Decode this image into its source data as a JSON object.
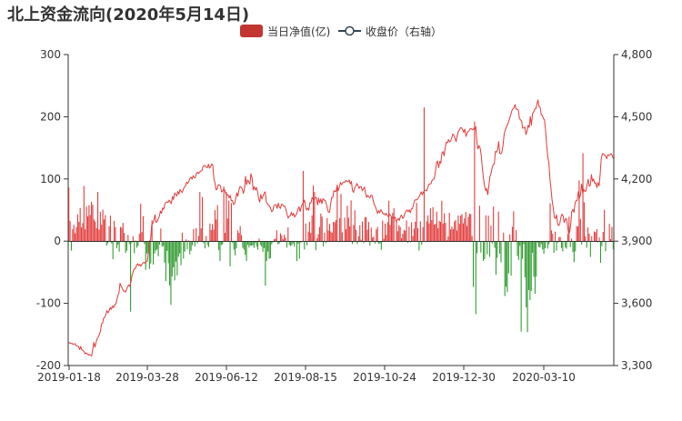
{
  "title": "北上资金流向(2020年5月14日)",
  "chart_data": {
    "type": "bar",
    "title": "北上资金流向(2020年5月14日)",
    "legend_position": "top-center",
    "xlabel": "",
    "ylabel": "",
    "y_left": {
      "range": [
        -200,
        300
      ],
      "ticks": [
        "-200",
        "-100",
        "0",
        "100",
        "200",
        "300"
      ]
    },
    "y_right": {
      "range": [
        3300,
        4800
      ],
      "ticks": [
        "3,300",
        "3,600",
        "3,900",
        "4,200",
        "4,500",
        "4,800"
      ]
    },
    "x_tick_labels": [
      "2019-01-18",
      "2019-03-28",
      "2019-06-12",
      "2019-08-15",
      "2019-10-24",
      "2019-12-30",
      "2020-03-10"
    ],
    "grid": false,
    "colors": {
      "positive_bar": "#e23a3a",
      "negative_bar": "#2e9a2e",
      "close_line": "#e23a3a",
      "axis": "#333333",
      "legend_bar": "#c23531"
    },
    "series": [
      {
        "name": "当日净值(亿)",
        "type": "bar",
        "axis": "left",
        "values": [
          86.3,
          32.6,
          -15.2,
          19.0,
          26.3,
          12.6,
          22.4,
          43.1,
          30.9,
          53.4,
          22.3,
          29.0,
          88.7,
          19.1,
          55.9,
          40.0,
          57.7,
          42.2,
          63.4,
          58.3,
          34.8,
          31.4,
          20.7,
          79.0,
          18.6,
          47.2,
          26.4,
          50.5,
          35.0,
          42.0,
          -7.4,
          -3.5,
          23.7,
          40.7,
          -3.9,
          -29.1,
          32.6,
          22.3,
          -11.5,
          -5.6,
          -16.8,
          22.8,
          21.5,
          29.3,
          13.4,
          -19.1,
          -15.4,
          9.9,
          -5.1,
          -113.3,
          -3.2,
          7.9,
          -19.5,
          1.0,
          -10.6,
          -7.5,
          11.7,
          60.3,
          14.7,
          40.2,
          -4.5,
          -46.1,
          -19.8,
          -20.4,
          -44.6,
          -36.0,
          33.5,
          -37.6,
          -19.9,
          -15.3,
          -13.3,
          -24.4,
          -5.5,
          20.3,
          -8.7,
          -7.8,
          -34.4,
          -64.3,
          -15.5,
          -35.8,
          -71.6,
          -102.6,
          -56.7,
          -42.1,
          -63.1,
          -32.8,
          -55.2,
          -25.0,
          -19.7,
          -38.7,
          13.4,
          -28.1,
          -16.8,
          2.8,
          -13.1,
          1.4,
          -21.2,
          -15.4,
          -6.6,
          19.4,
          -8.4,
          21.0,
          -3.8,
          8.5,
          79.0,
          20.7,
          71.0,
          -3.3,
          -11.7,
          8.2,
          -6.1,
          -9.4,
          28.3,
          17.9,
          27.5,
          18.5,
          49.9,
          34.8,
          58.1,
          -14.5,
          -32.0,
          -6.2,
          -5.3,
          87.7,
          13.2,
          79.3,
          36.4,
          65.1,
          -40.4,
          61.2,
          -2.5,
          -13.8,
          -22.8,
          -11.5,
          17.4,
          13.2,
          24.3,
          9.8,
          -10.5,
          -13.6,
          -22.1,
          -31.8,
          -5.7,
          -10.3,
          -7.2,
          -7.4,
          -6.6,
          -10.7,
          -3.0,
          -8.7,
          -13.8,
          4.1,
          -5.7,
          -8.7,
          -17.4,
          -11.0,
          -71.7,
          -32.0,
          -16.7,
          -28.6,
          -27.2,
          -5.2,
          -1.9,
          3.3,
          4.1,
          17.6,
          -5.0,
          -4.1,
          12.7,
          9.4,
          3.0,
          10.3,
          5.6,
          -10.4,
          22.1,
          -6.0,
          -7.7,
          -6.6,
          -3.5,
          -8.9,
          -0.0,
          -32.0,
          -3.9,
          -28.2,
          -2.2,
          -1.8,
          112.9,
          -13.5,
          28.2,
          -6.8,
          15.2,
          31.1,
          13.1,
          41.3,
          89.3,
          79.1,
          -14.7,
          4.8,
          11.2,
          22.8,
          44.4,
          39.5,
          -8.4,
          13.6,
          -2.9,
          37.0,
          17.1,
          27.7,
          15.7,
          13.4,
          31.0,
          30.3,
          34.0,
          90.6,
          -1.5,
          36.9,
          75.9,
          14.1,
          -1.1,
          37.8,
          19.1,
          57.0,
          37.7,
          23.9,
          65.6,
          -4.4,
          26.1,
          49.6,
          18.2,
          -4.7,
          8.0,
          25.7,
          2.3,
          31.6,
          -3.0,
          38.4,
          38.9,
          18.4,
          30.9,
          -7.2,
          21.8,
          5.9,
          7.2,
          -3.9,
          19.0,
          22.8,
          -4.1,
          -3.4,
          -13.9,
          33.1,
          3.8,
          28.4,
          10.0,
          30.7,
          65.0,
          26.2,
          38.9,
          45.3,
          53.0,
          -1.6,
          33.7,
          16.0,
          25.7,
          22.7,
          4.6,
          11.6,
          18.2,
          16.9,
          33.2,
          -2.8,
          23.2,
          -1.9,
          30.4,
          8.2,
          20.0,
          31.3,
          61.6,
          20.8,
          -15.0,
          32.0,
          -6.0,
          22.4,
          214.9,
          -0.6,
          31.9,
          41.5,
          28.6,
          52.9,
          33.8,
          54.7,
          26.8,
          27.7,
          47.4,
          20.8,
          32.6,
          30.9,
          65.0,
          28.6,
          44.9,
          29.4,
          1.5,
          7.6,
          45.5,
          18.7,
          23.4,
          19.5,
          31.7,
          33.8,
          17.0,
          41.2,
          27.8,
          41.2,
          43.6,
          28.6,
          36.5,
          47.0,
          24.5,
          39.3,
          44.3,
          43.4,
          8.3,
          -73.6,
          192.3,
          -117.4,
          -19.5,
          -1.0,
          56.9,
          -18.4,
          -0.6,
          -31.8,
          -29.0,
          41.5,
          -21.2,
          40.9,
          -25.4,
          25.1,
          -3.9,
          55.7,
          -10.8,
          -53.8,
          -26.9,
          47.6,
          -20.3,
          -34.0,
          -0.1,
          13.6,
          -88.3,
          -73.3,
          -82.1,
          -51.8,
          10.8,
          -55.5,
          23.1,
          47.9,
          1.1,
          17.8,
          -23.9,
          -30.1,
          -7.8,
          -145.4,
          -28.5,
          -4.8,
          -58.1,
          -106.5,
          -146.4,
          -78.6,
          -94.6,
          -80.1,
          -18.7,
          -57.2,
          -84.7,
          -57.0,
          -2.6,
          -9.5,
          -10.2,
          -4.7,
          -13.3,
          -20.4,
          -11.6,
          -1.6,
          -11.9,
          -4.9,
          60.7,
          17.4,
          12.1,
          -18.8,
          15.3,
          -15.2,
          -2.3,
          6.6,
          6.6,
          -11.1,
          -16.4,
          0.4,
          -10.2,
          -12.1,
          11.6,
          39.3,
          -9.7,
          3.9,
          -17.7,
          -33.8,
          -16.4,
          24.2,
          23.4,
          97.6,
          35.8,
          -5.4,
          141.2,
          62.5,
          7.6,
          -10.7,
          22.0,
          11.8,
          -25.5,
          8.0,
          0.1,
          15.6,
          14.6,
          19.4,
          -1.8,
          5.9,
          -34.8,
          -7.9,
          14.8,
          50.4,
          -16.1,
          -1.3,
          -0.8,
          27.8,
          3.2,
          22.9,
          -13.3
        ]
      },
      {
        "name": "收盘价（右轴）",
        "type": "line",
        "axis": "right",
        "values": [
          3408,
          3411,
          3406,
          3407,
          3402,
          3404,
          3405,
          3395,
          3393,
          3392,
          3377,
          3392,
          3375,
          3374,
          3367,
          3356,
          3361,
          3356,
          3350,
          3354,
          3350,
          3346,
          3378,
          3412,
          3389,
          3410,
          3430,
          3437,
          3448,
          3465,
          3501,
          3504,
          3529,
          3532,
          3546,
          3565,
          3554,
          3564,
          3580,
          3571,
          3587,
          3579,
          3593,
          3595,
          3614,
          3638,
          3649,
          3697,
          3683,
          3674,
          3660,
          3660,
          3654,
          3667,
          3681,
          3689,
          3681,
          3702,
          3736,
          3753,
          3766,
          3767,
          3782,
          3791,
          3782,
          3788,
          3779,
          3788,
          3795,
          3798,
          3793,
          3800,
          3803,
          3844,
          3900,
          3907,
          3978,
          3985,
          3999,
          4027,
          3990,
          3994,
          4008,
          4019,
          4045,
          4034,
          4060,
          4054,
          4078,
          4087,
          4090,
          4086,
          4098,
          4089,
          4081,
          4115,
          4101,
          4132,
          4126,
          4118,
          4140,
          4127,
          4149,
          4140,
          4134,
          4151,
          4160,
          4165,
          4185,
          4179,
          4187,
          4203,
          4208,
          4199,
          4216,
          4206,
          4206,
          4227,
          4232,
          4226,
          4234,
          4238,
          4240,
          4259,
          4266,
          4262,
          4258,
          4254,
          4271,
          4252,
          4259,
          4272,
          4268,
          4202,
          4181,
          4147,
          4151,
          4172,
          4172,
          4167,
          4137,
          4142,
          4151,
          4146,
          4128,
          4121,
          4125,
          4108,
          4121,
          4095,
          4096,
          4077,
          4081,
          4104,
          4133,
          4116,
          4149,
          4164,
          4160,
          4153,
          4130,
          4151,
          4212,
          4172,
          4195,
          4186,
          4176,
          4225,
          4205,
          4147,
          4163,
          4146,
          4159,
          4140,
          4106,
          4088,
          4125,
          4103,
          4116,
          4132,
          4138,
          4092,
          4081,
          4072,
          4071,
          4058,
          4042,
          4046,
          4071,
          4076,
          4076,
          4058,
          4083,
          4065,
          4058,
          4078,
          4077,
          4068,
          4069,
          4053,
          4031,
          4011,
          4020,
          4022,
          4039,
          4024,
          4034,
          4016,
          4025,
          4034,
          4053,
          4066,
          4043,
          4063,
          4079,
          4084,
          4099,
          4067,
          4050,
          4060,
          4049,
          4085,
          4085,
          4110,
          4102,
          4102,
          4111,
          4110,
          4074,
          4107,
          4085,
          4104,
          4081,
          4105,
          4098,
          4097,
          4080,
          4058,
          4039,
          4040,
          4078,
          4111,
          4111,
          4144,
          4140,
          4140,
          4169,
          4144,
          4159,
          4183,
          4172,
          4181,
          4186,
          4184,
          4193,
          4188,
          4187,
          4195,
          4176,
          4188,
          4145,
          4135,
          4156,
          4164,
          4178,
          4169,
          4154,
          4162,
          4164,
          4143,
          4151,
          4161,
          4131,
          4111,
          4121,
          4113,
          4109,
          4122,
          4120,
          4097,
          4076,
          4067,
          4051,
          4033,
          4047,
          4037,
          4052,
          4044,
          4031,
          4034,
          4026,
          4034,
          4023,
          4018,
          4030,
          4023,
          4015,
          4012,
          4011,
          4016,
          3995,
          4002,
          4010,
          4000,
          4019,
          4026,
          4010,
          4016,
          4034,
          4043,
          4051,
          4042,
          4051,
          4037,
          4055,
          4057,
          4079,
          4097,
          4100,
          4099,
          4105,
          4114,
          4125,
          4138,
          4123,
          4136,
          4145,
          4146,
          4143,
          4157,
          4174,
          4176,
          4177,
          4194,
          4198,
          4200,
          4234,
          4277,
          4287,
          4254,
          4285,
          4276,
          4325,
          4332,
          4312,
          4349,
          4378,
          4374,
          4390,
          4378,
          4383,
          4399,
          4417,
          4410,
          4396,
          4380,
          4408,
          4429,
          4436,
          4447,
          4447,
          4437,
          4425,
          4440,
          4405,
          4420,
          4429,
          4433,
          4443,
          4442,
          4437,
          4442,
          4437,
          4453,
          4380,
          4345,
          4360,
          4350,
          4315,
          4253,
          4205,
          4169,
          4144,
          4154,
          4124,
          4167,
          4212,
          4227,
          4253,
          4270,
          4272,
          4333,
          4329,
          4341,
          4380,
          4323,
          4321,
          4330,
          4362,
          4416,
          4435,
          4450,
          4460,
          4475,
          4490,
          4508,
          4528,
          4538,
          4542,
          4559,
          4536,
          4536,
          4533,
          4493,
          4485,
          4480,
          4445,
          4446,
          4450,
          4414,
          4431,
          4459,
          4449,
          4502,
          4459,
          4516,
          4522,
          4537,
          4538,
          4559,
          4581,
          4548,
          4546,
          4509,
          4507,
          4491,
          4486,
          4431,
          4363,
          4306,
          4278,
          4201,
          4150,
          4095,
          4062,
          4015,
          4009,
          4027,
          3983,
          3975,
          3984,
          4015,
          4030,
          4022,
          3990,
          4004,
          4010,
          3979,
          3938,
          3943,
          3979,
          4043,
          4053,
          4038,
          4084,
          4096,
          4097,
          4139,
          4106,
          4124,
          4175,
          4131,
          4150,
          4140,
          4142,
          4172,
          4198,
          4165,
          4169,
          4221,
          4189,
          4200,
          4178,
          4182,
          4158,
          4182,
          4167,
          4222,
          4297,
          4322,
          4320,
          4316,
          4311,
          4297,
          4317,
          4313,
          4317,
          4322,
          4314,
          4298
        ]
      }
    ]
  },
  "legend": {
    "bar_label": "当日净值(亿)",
    "line_label": "收盘价（右轴）"
  }
}
